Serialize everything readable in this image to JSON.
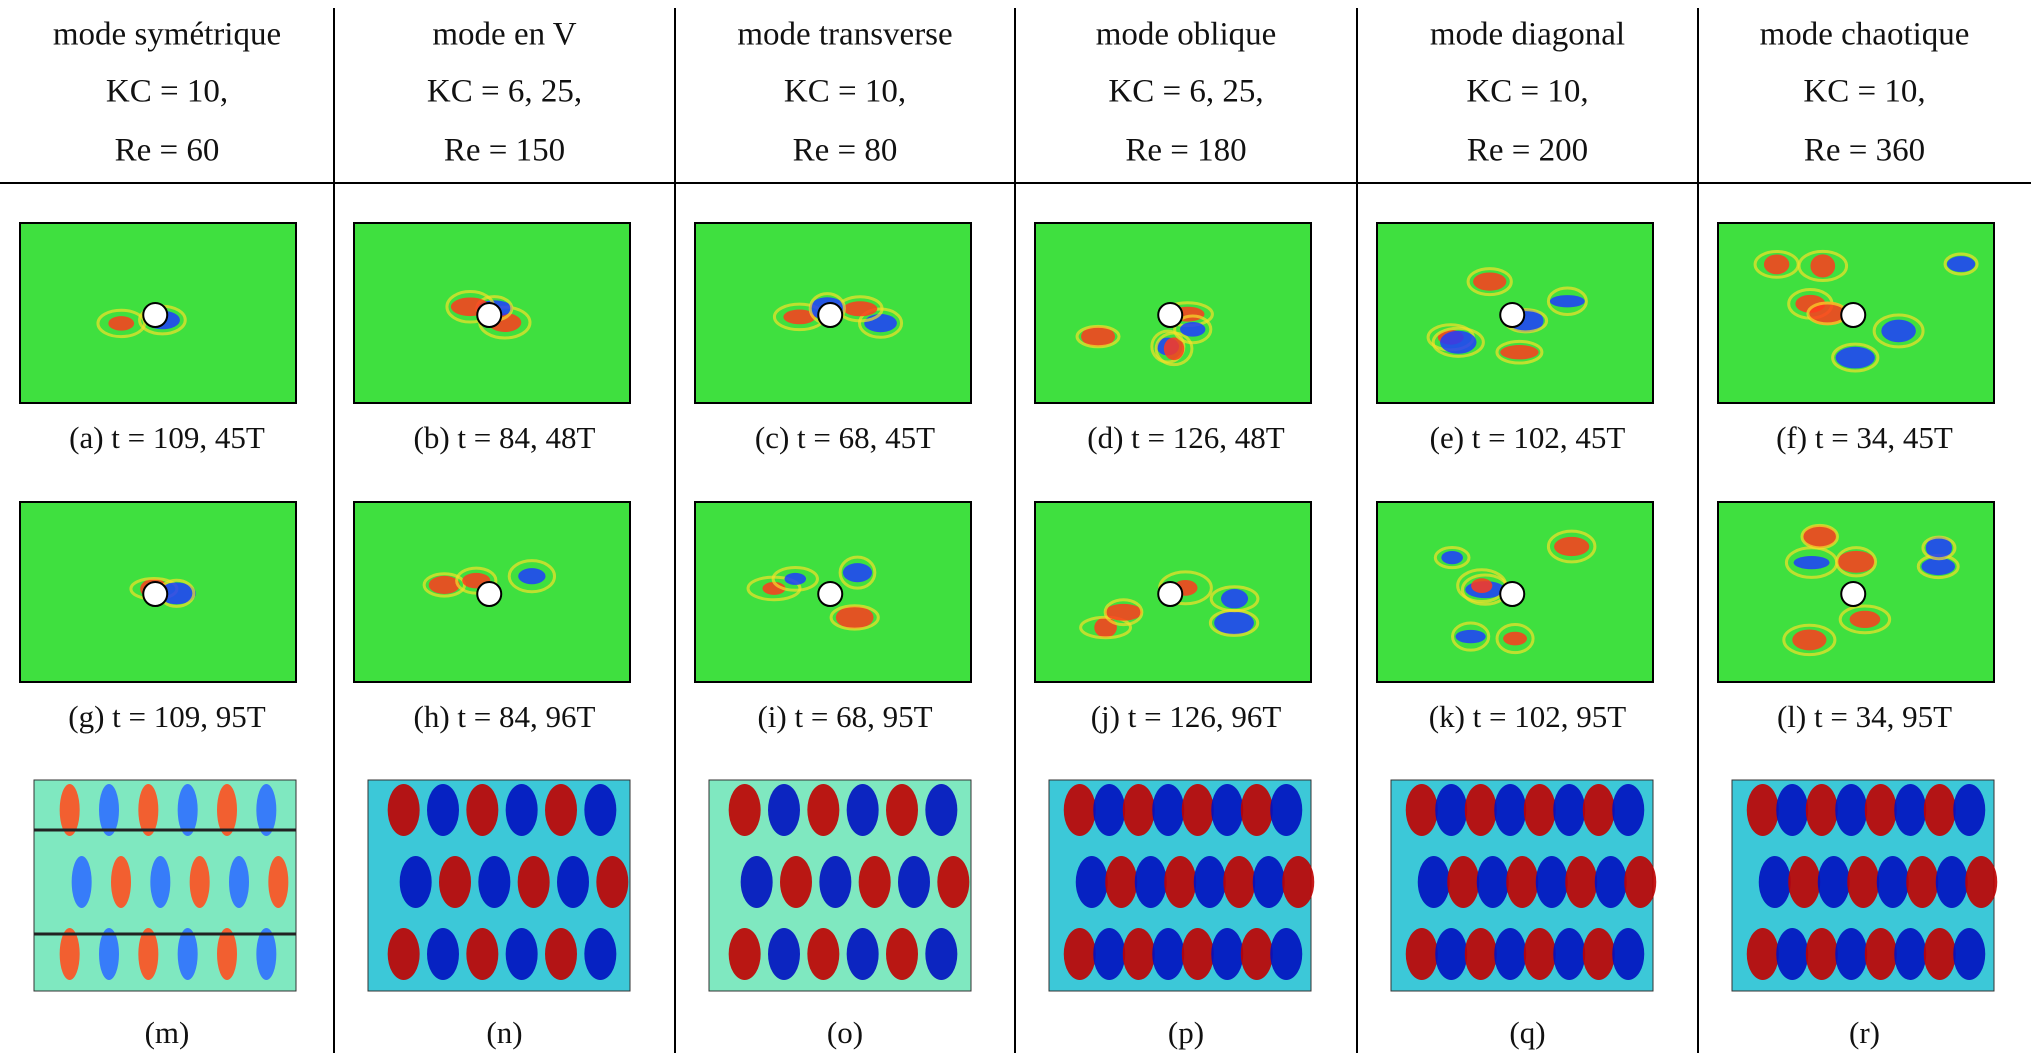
{
  "columns": [
    {
      "mode": "mode symétrique",
      "kc": "KC = 10,",
      "re": "Re = 60",
      "caption_top": "(a) t = 109, 45T",
      "caption_middle": "(g) t = 109, 95T",
      "caption_bottom": "(m)"
    },
    {
      "mode": "mode en V",
      "kc": "KC = 6, 25,",
      "re": "Re = 150",
      "caption_top": "(b) t = 84, 48T",
      "caption_middle": "(h) t = 84, 96T",
      "caption_bottom": "(n)"
    },
    {
      "mode": "mode transverse",
      "kc": "KC = 10,",
      "re": "Re = 80",
      "caption_top": "(c) t = 68, 45T",
      "caption_middle": "(i) t = 68, 95T",
      "caption_bottom": "(o)"
    },
    {
      "mode": "mode oblique",
      "kc": "KC = 6, 25,",
      "re": "Re = 180",
      "caption_top": "(d) t = 126, 48T",
      "caption_middle": "(j) t = 126, 96T",
      "caption_bottom": "(p)"
    },
    {
      "mode": "mode diagonal",
      "kc": "KC = 10,",
      "re": "Re = 200",
      "caption_top": "(e) t = 102, 45T",
      "caption_middle": "(k) t = 102, 95T",
      "caption_bottom": "(q)"
    },
    {
      "mode": "mode chaotique",
      "kc": "KC = 10,",
      "re": "Re = 360",
      "caption_top": "(f) t = 34, 45T",
      "caption_middle": "(l) t = 34, 95T",
      "caption_bottom": "(r)"
    }
  ]
}
